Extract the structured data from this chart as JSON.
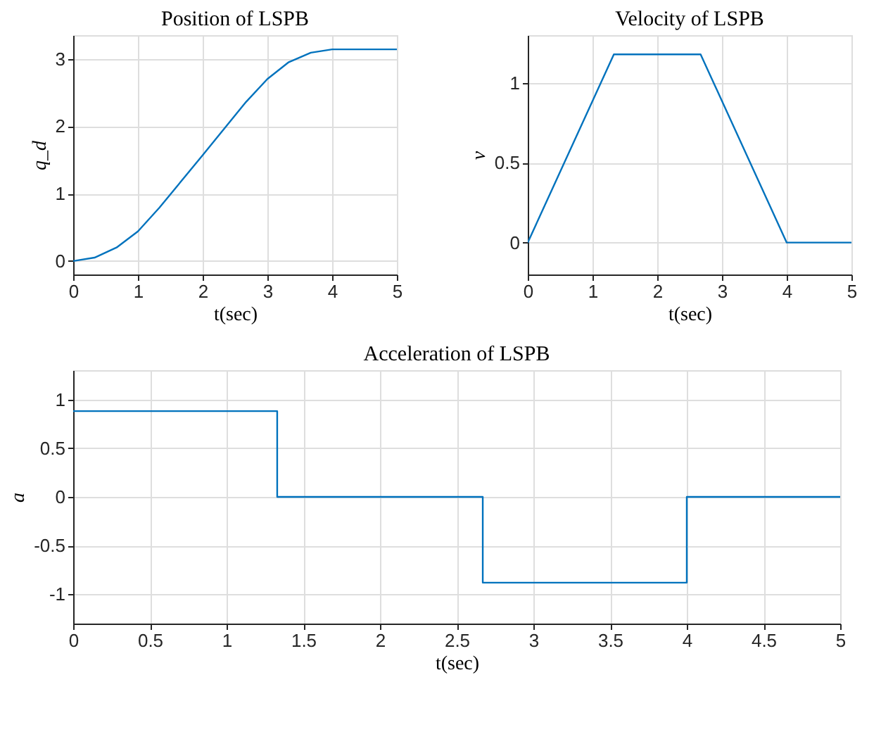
{
  "chart_data": [
    {
      "type": "line",
      "title": "Position of LSPB",
      "xlabel": "t(sec)",
      "ylabel": "q_d",
      "xlim": [
        0,
        5
      ],
      "xticks": [
        0,
        1,
        2,
        3,
        4,
        5
      ],
      "ylim": [
        -0.2,
        3.35
      ],
      "yticks": [
        0,
        1,
        2,
        3
      ],
      "grid": true,
      "series": [
        {
          "color": "#0072bd",
          "x": [
            0,
            0.33,
            0.67,
            1,
            1.33,
            2,
            2.67,
            3,
            3.33,
            3.67,
            4,
            5
          ],
          "values": [
            0,
            0.05,
            0.2,
            0.44,
            0.79,
            1.57,
            2.36,
            2.7,
            2.95,
            3.09,
            3.14,
            3.14
          ]
        }
      ]
    },
    {
      "type": "line",
      "title": "Velocity of LSPB",
      "xlabel": "t(sec)",
      "ylabel": "v",
      "xlim": [
        0,
        5
      ],
      "xticks": [
        0,
        1,
        2,
        3,
        4,
        5
      ],
      "ylim": [
        -0.2,
        1.3
      ],
      "yticks": [
        0,
        0.5,
        1
      ],
      "grid": true,
      "series": [
        {
          "color": "#0072bd",
          "x": [
            0,
            1.33,
            2.67,
            4,
            5
          ],
          "values": [
            0,
            1.18,
            1.18,
            0,
            0
          ]
        }
      ]
    },
    {
      "type": "step",
      "title": "Acceleration of LSPB",
      "xlabel": "t(sec)",
      "ylabel": "a",
      "xlim": [
        0,
        5
      ],
      "xticks": [
        0,
        0.5,
        1,
        1.5,
        2,
        2.5,
        3,
        3.5,
        4,
        4.5,
        5
      ],
      "ylim": [
        -1.3,
        1.3
      ],
      "yticks": [
        -1,
        -0.5,
        0,
        0.5,
        1
      ],
      "grid": true,
      "series": [
        {
          "color": "#0072bd",
          "x": [
            0,
            1.33,
            2.67,
            4,
            5
          ],
          "values": [
            0.88,
            0,
            -0.88,
            0,
            0
          ]
        }
      ]
    }
  ]
}
